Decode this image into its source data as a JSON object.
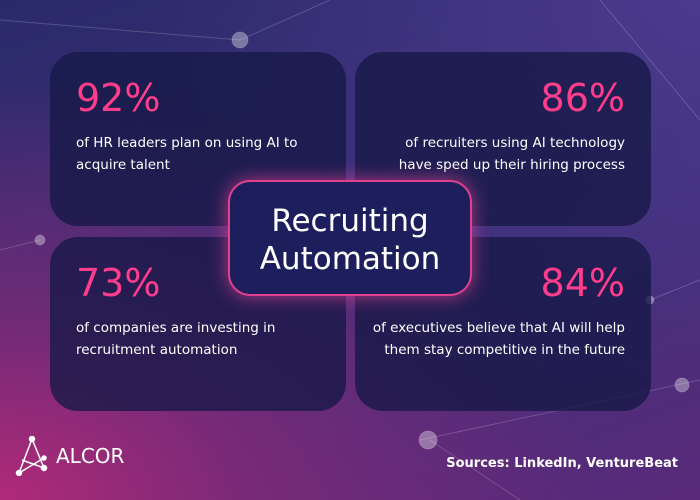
{
  "header": {
    "title_line1": "Recruiting",
    "title_line2": "Automation"
  },
  "stats": [
    {
      "figure": "92%",
      "text_line1": "of HR leaders plan on using AI to",
      "text_line2": "acquire talent"
    },
    {
      "figure": "86%",
      "text_line1": "of recruiters using AI technology",
      "text_line2": "have sped up their hiring process"
    },
    {
      "figure": "73%",
      "text_line1": "of companies are investing in",
      "text_line2": "recruitment automation"
    },
    {
      "figure": "84%",
      "text_line1": "of executives believe that AI will help",
      "text_line2": "them stay competitive in the future"
    }
  ],
  "footer": {
    "logo": "ALCOR",
    "sources": "Sources: LinkedIn, VentureBeat"
  }
}
